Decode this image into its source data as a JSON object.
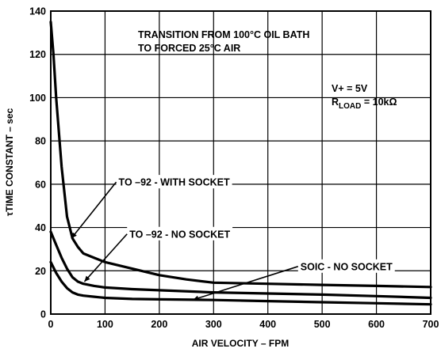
{
  "chart_data": {
    "type": "line",
    "title": "",
    "xlabel": "AIR VELOCITY – FPM",
    "ylabel": "τTIME CONSTANT – sec",
    "xlim": [
      0,
      700
    ],
    "ylim": [
      0,
      140
    ],
    "xticks": [
      0,
      100,
      200,
      300,
      400,
      500,
      600,
      700
    ],
    "yticks": [
      0,
      20,
      40,
      60,
      80,
      100,
      120,
      140
    ],
    "grid": true,
    "annotations": {
      "condition_line1": "TRANSITION FROM 100°C OIL BATH",
      "condition_line2": "TO FORCED 25°C AIR",
      "supply": "V+ = 5V",
      "load_prefix": "R",
      "load_sub": "LOAD",
      "load_value": " = 10kΩ"
    },
    "series": [
      {
        "name": "TO –92 - WITH SOCKET",
        "x": [
          0,
          5,
          10,
          20,
          30,
          40,
          50,
          60,
          80,
          100,
          150,
          200,
          250,
          300,
          400,
          500,
          600,
          700
        ],
        "y": [
          135,
          120,
          100,
          68,
          45,
          35,
          31,
          28,
          26,
          24,
          21,
          18,
          16,
          14.5,
          14,
          13.5,
          13,
          12.5
        ]
      },
      {
        "name": "TO –92 - NO SOCKET",
        "x": [
          0,
          10,
          20,
          30,
          40,
          50,
          60,
          80,
          100,
          150,
          200,
          300,
          400,
          500,
          600,
          700
        ],
        "y": [
          38,
          32,
          26,
          21,
          17,
          15,
          14,
          13,
          12.3,
          11.5,
          11,
          10,
          9.5,
          9,
          8.3,
          7.5
        ]
      },
      {
        "name": "SOIC - NO SOCKET",
        "x": [
          0,
          10,
          20,
          30,
          40,
          50,
          60,
          80,
          100,
          150,
          200,
          300,
          400,
          500,
          600,
          700
        ],
        "y": [
          24,
          19,
          15,
          12,
          10,
          9,
          8.5,
          8,
          7.5,
          7,
          6.8,
          6.5,
          6,
          5.5,
          5,
          4.5
        ]
      }
    ],
    "series_labels": [
      {
        "text": "TO –92 - WITH SOCKET",
        "label_x": 125,
        "label_y": 61,
        "point_x": 38,
        "point_y": 35
      },
      {
        "text": "TO –92 - NO SOCKET",
        "label_x": 145,
        "label_y": 37,
        "point_x": 62,
        "point_y": 15
      },
      {
        "text": "SOIC - NO SOCKET",
        "label_x": 460,
        "label_y": 22,
        "point_x": 262,
        "point_y": 6.6
      }
    ]
  }
}
